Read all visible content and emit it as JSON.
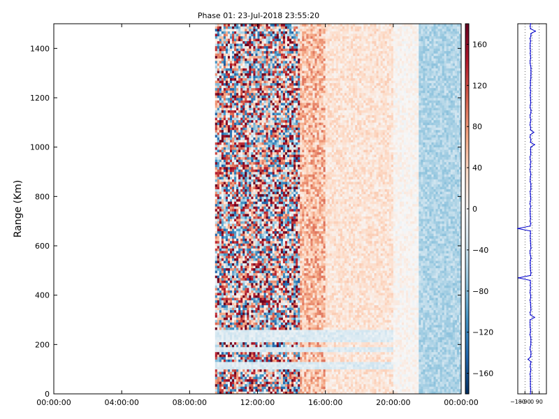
{
  "chart_data": [
    {
      "type": "heatmap",
      "title": "Phase 01: 23-Jul-2018 23:55:20",
      "xlabel": "",
      "ylabel": "Range (Km)",
      "x_ticks": [
        "00:00:00",
        "04:00:00",
        "08:00:00",
        "12:00:00",
        "16:00:00",
        "20:00:00",
        "00:00:00"
      ],
      "x_range_hours": [
        0,
        24
      ],
      "y_ticks": [
        0,
        200,
        400,
        600,
        800,
        1000,
        1200,
        1400
      ],
      "ylim": [
        0,
        1500
      ],
      "data_start_hour": 9.5,
      "data_end_hour": 24,
      "colorbar": {
        "colormap": "RdBu_r",
        "range": [
          -180,
          180
        ],
        "ticks": [
          -160,
          -120,
          -80,
          -40,
          0,
          40,
          80,
          120,
          160
        ],
        "tick_labels": [
          "−160",
          "−120",
          "−80",
          "−40",
          "0",
          "40",
          "80",
          "120",
          "160"
        ]
      },
      "bands": [
        {
          "from_hour": 9.5,
          "to_hour": 14.5,
          "mean_phase": 20,
          "spread": 170
        },
        {
          "from_hour": 14.5,
          "to_hour": 16.0,
          "mean_phase": 55,
          "spread": 45
        },
        {
          "from_hour": 16.0,
          "to_hour": 20.0,
          "mean_phase": 25,
          "spread": 22
        },
        {
          "from_hour": 20.0,
          "to_hour": 21.5,
          "mean_phase": 5,
          "spread": 15
        },
        {
          "from_hour": 21.5,
          "to_hour": 24.0,
          "mean_phase": -55,
          "spread": 20
        }
      ],
      "low_range_stripes_km": [
        [
          100,
          130
        ],
        [
          170,
          185
        ],
        [
          210,
          260
        ]
      ],
      "grid": false
    },
    {
      "type": "line",
      "x_ticks": [
        "−180",
        "−90",
        "0",
        "90"
      ],
      "xlim": [
        -180,
        180
      ],
      "ylim": [
        0,
        1500
      ],
      "grid_x": [
        -90,
        0,
        90
      ],
      "series_color": "#0000cc",
      "profile_baseline": -20,
      "spikes": [
        {
          "range_km": 665,
          "value": -180
        },
        {
          "range_km": 470,
          "value": -170
        },
        {
          "range_km": 1470,
          "value": 40
        },
        {
          "range_km": 1060,
          "value": 20
        },
        {
          "range_km": 1010,
          "value": 30
        },
        {
          "range_km": 310,
          "value": 30
        },
        {
          "range_km": 140,
          "value": -50
        }
      ]
    }
  ]
}
